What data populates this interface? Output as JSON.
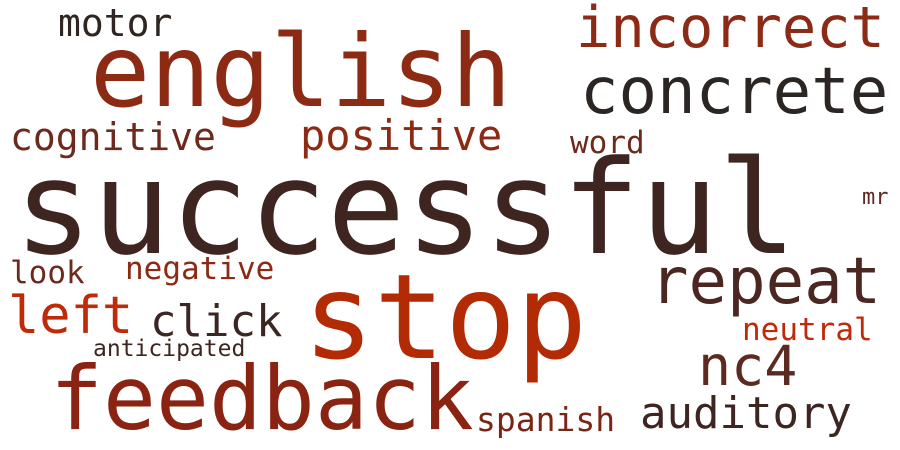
{
  "words": [
    {
      "text": "successful",
      "color": "#3f2520"
    },
    {
      "text": "english",
      "color": "#8d2a14"
    },
    {
      "text": "stop",
      "color": "#b22b05"
    },
    {
      "text": "feedback",
      "color": "#8a2312"
    },
    {
      "text": "concrete",
      "color": "#2b2523"
    },
    {
      "text": "incorrect",
      "color": "#8c2a15"
    },
    {
      "text": "repeat",
      "color": "#4a2720"
    },
    {
      "text": "nc4",
      "color": "#5c2a20"
    },
    {
      "text": "auditory",
      "color": "#3d2521"
    },
    {
      "text": "positive",
      "color": "#8d2a14"
    },
    {
      "text": "cognitive",
      "color": "#6d291b"
    },
    {
      "text": "motor",
      "color": "#2f2521"
    },
    {
      "text": "left",
      "color": "#bf2a08"
    },
    {
      "text": "click",
      "color": "#3a2622"
    },
    {
      "text": "negative",
      "color": "#8d2a14"
    },
    {
      "text": "look",
      "color": "#6d291b"
    },
    {
      "text": "word",
      "color": "#6d291b"
    },
    {
      "text": "spanish",
      "color": "#7a2516"
    },
    {
      "text": "neutral",
      "color": "#bf2a08"
    },
    {
      "text": "anticipated",
      "color": "#3f2520"
    },
    {
      "text": "mr",
      "color": "#5c2a20"
    }
  ]
}
